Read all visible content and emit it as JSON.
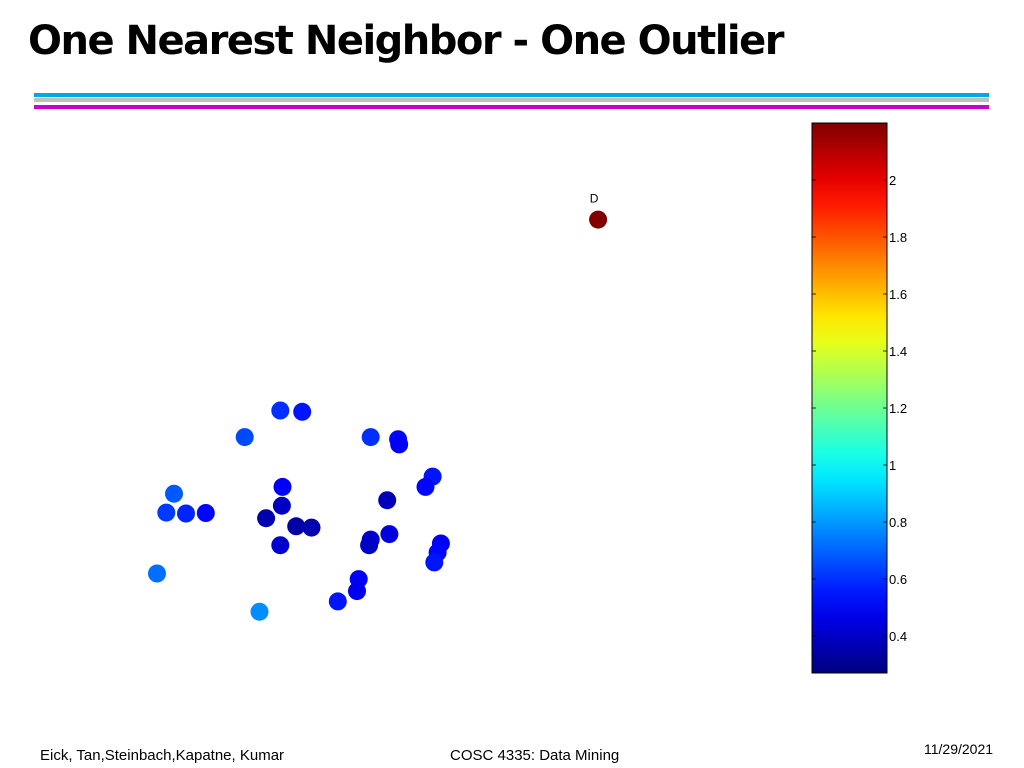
{
  "slide": {
    "title": "One Nearest Neighbor - One Outlier",
    "rule_colors": [
      "#00aadd",
      "#c0c0c0",
      "#cc00cc"
    ]
  },
  "footer": {
    "authors": "Eick, Tan,Steinbach,Kapatne, Kumar",
    "course": "COSC 4335: Data Mining",
    "date": "11/29/2021"
  },
  "chart_data": {
    "type": "scatter",
    "title": "",
    "xlabel": "",
    "ylabel": "",
    "axes_visible": false,
    "grid": false,
    "colormap": "jet",
    "colorbar": {
      "range": [
        0.27,
        2.2
      ],
      "ticks": [
        2,
        1.8,
        1.6,
        1.4,
        1.2,
        1,
        0.8,
        0.6,
        0.4
      ],
      "tick_labels": [
        "2",
        "1.8",
        "1.6",
        "1.4",
        "1.2",
        "1",
        "0.8",
        "0.6",
        "0.4"
      ],
      "placement": "right"
    },
    "points": [
      {
        "x": 0.805,
        "y": 0.945,
        "value": 2.2,
        "label": "D"
      },
      {
        "x": 0.225,
        "y": 0.5,
        "value": 0.6,
        "label": ""
      },
      {
        "x": 0.265,
        "y": 0.497,
        "value": 0.55,
        "label": ""
      },
      {
        "x": 0.16,
        "y": 0.438,
        "value": 0.65,
        "label": ""
      },
      {
        "x": 0.39,
        "y": 0.438,
        "value": 0.6,
        "label": ""
      },
      {
        "x": 0.44,
        "y": 0.433,
        "value": 0.52,
        "label": ""
      },
      {
        "x": 0.442,
        "y": 0.421,
        "value": 0.5,
        "label": ""
      },
      {
        "x": 0.503,
        "y": 0.346,
        "value": 0.55,
        "label": ""
      },
      {
        "x": 0.49,
        "y": 0.322,
        "value": 0.52,
        "label": ""
      },
      {
        "x": 0.229,
        "y": 0.322,
        "value": 0.5,
        "label": ""
      },
      {
        "x": 0.031,
        "y": 0.306,
        "value": 0.68,
        "label": ""
      },
      {
        "x": 0.228,
        "y": 0.278,
        "value": 0.4,
        "label": ""
      },
      {
        "x": 0.42,
        "y": 0.291,
        "value": 0.38,
        "label": ""
      },
      {
        "x": 0.017,
        "y": 0.262,
        "value": 0.62,
        "label": ""
      },
      {
        "x": 0.053,
        "y": 0.26,
        "value": 0.58,
        "label": ""
      },
      {
        "x": 0.089,
        "y": 0.261,
        "value": 0.52,
        "label": ""
      },
      {
        "x": 0.199,
        "y": 0.249,
        "value": 0.36,
        "label": ""
      },
      {
        "x": 0.254,
        "y": 0.23,
        "value": 0.34,
        "label": ""
      },
      {
        "x": 0.282,
        "y": 0.227,
        "value": 0.36,
        "label": ""
      },
      {
        "x": 0.424,
        "y": 0.212,
        "value": 0.45,
        "label": ""
      },
      {
        "x": 0.39,
        "y": 0.199,
        "value": 0.43,
        "label": ""
      },
      {
        "x": 0.225,
        "y": 0.186,
        "value": 0.42,
        "label": ""
      },
      {
        "x": 0.387,
        "y": 0.186,
        "value": 0.4,
        "label": ""
      },
      {
        "x": 0.518,
        "y": 0.19,
        "value": 0.5,
        "label": ""
      },
      {
        "x": 0.512,
        "y": 0.169,
        "value": 0.52,
        "label": ""
      },
      {
        "x": 0.506,
        "y": 0.146,
        "value": 0.55,
        "label": ""
      },
      {
        "x": 0.0,
        "y": 0.12,
        "value": 0.72,
        "label": ""
      },
      {
        "x": 0.368,
        "y": 0.107,
        "value": 0.5,
        "label": ""
      },
      {
        "x": 0.365,
        "y": 0.079,
        "value": 0.48,
        "label": ""
      },
      {
        "x": 0.33,
        "y": 0.055,
        "value": 0.55,
        "label": ""
      },
      {
        "x": 0.187,
        "y": 0.031,
        "value": 0.78,
        "label": ""
      }
    ]
  }
}
